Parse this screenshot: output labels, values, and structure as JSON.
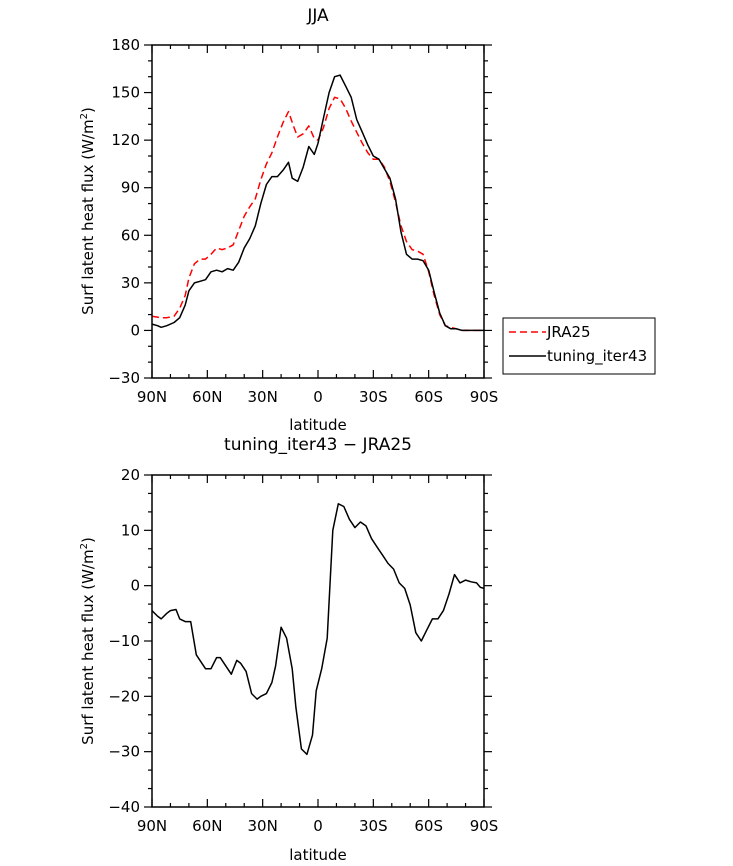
{
  "chart_data": [
    {
      "type": "line",
      "title": "JJA",
      "xlabel": "latitude",
      "ylabel": "Surf latent heat flux (W/m²)",
      "ylabel_unit_base": "W/m",
      "ylabel_prefix": "Surf latent heat flux (",
      "ylabel_sup": "2",
      "ylabel_suffix": ")",
      "xlim": [
        90,
        -90
      ],
      "ylim": [
        -30,
        180
      ],
      "xticks": [
        90,
        60,
        30,
        0,
        -30,
        -60,
        -90
      ],
      "xtick_labels": [
        "90N",
        "60N",
        "30N",
        "0",
        "30S",
        "60S",
        "90S"
      ],
      "yticks": [
        -30,
        0,
        30,
        60,
        90,
        120,
        150,
        180
      ],
      "ytick_labels": [
        "−30",
        "0",
        "30",
        "60",
        "90",
        "120",
        "150",
        "180"
      ],
      "legend_position": "right",
      "series": [
        {
          "name": "JRA25",
          "color": "#ff0000",
          "dash": "dashed",
          "x": [
            90,
            85,
            82,
            78,
            75,
            72,
            70,
            67,
            64,
            61,
            58,
            55,
            52,
            49,
            46,
            43,
            40,
            37,
            34,
            31,
            28,
            25,
            22,
            19,
            16,
            13,
            11,
            8,
            5,
            2,
            0,
            -3,
            -6,
            -9,
            -12,
            -15,
            -18,
            -21,
            -24,
            -27,
            -30,
            -33,
            -36,
            -39,
            -42,
            -45,
            -48,
            -51,
            -54,
            -57,
            -60,
            -63,
            -66,
            -69,
            -72,
            -75,
            -78,
            -81,
            -84,
            -87,
            -90
          ],
          "y": [
            9,
            8,
            8,
            9,
            14,
            22,
            33,
            42,
            45,
            45,
            48,
            52,
            51,
            52,
            54,
            63,
            72,
            78,
            83,
            95,
            105,
            112,
            122,
            131,
            138,
            128,
            122,
            124,
            129,
            121,
            120,
            128,
            140,
            147,
            146,
            140,
            132,
            125,
            118,
            112,
            108,
            108,
            103,
            94,
            81,
            66,
            56,
            51,
            50,
            48,
            37,
            22,
            10,
            3,
            2,
            1,
            0,
            0,
            0,
            0,
            0
          ]
        },
        {
          "name": "tuning_iter43",
          "color": "#000000",
          "dash": "solid",
          "x": [
            90,
            87,
            85,
            82,
            78,
            75,
            72,
            70,
            67,
            64,
            61,
            58,
            55,
            52,
            49,
            46,
            43,
            40,
            37,
            34,
            31,
            28,
            25,
            22,
            19,
            16,
            14,
            11,
            8,
            5,
            2,
            0,
            -3,
            -6,
            -9,
            -12,
            -15,
            -18,
            -21,
            -24,
            -27,
            -30,
            -33,
            -36,
            -39,
            -42,
            -45,
            -48,
            -51,
            -54,
            -57,
            -60,
            -63,
            -66,
            -69,
            -72,
            -75,
            -78,
            -81,
            -84,
            -87,
            -90
          ],
          "y": [
            4,
            3,
            2,
            3,
            5,
            8,
            16,
            25,
            30,
            31,
            32,
            37,
            38,
            37,
            39,
            38,
            43,
            52,
            58,
            66,
            80,
            92,
            97,
            97,
            101,
            106,
            96,
            94,
            103,
            116,
            111,
            118,
            134,
            150,
            160,
            161,
            154,
            147,
            133,
            125,
            117,
            110,
            108,
            102,
            96,
            83,
            62,
            48,
            45,
            45,
            44,
            38,
            24,
            11,
            3,
            1,
            1,
            0,
            0,
            0,
            0,
            0
          ]
        }
      ]
    },
    {
      "type": "line",
      "title": "tuning_iter43 − JRA25",
      "xlabel": "latitude",
      "ylabel": "Surf latent heat flux (W/m²)",
      "ylabel_prefix": "Surf latent heat flux (",
      "ylabel_unit_base": "W/m",
      "ylabel_sup": "2",
      "ylabel_suffix": ")",
      "xlim": [
        90,
        -90
      ],
      "ylim": [
        -40,
        20
      ],
      "xticks": [
        90,
        60,
        30,
        0,
        -30,
        -60,
        -90
      ],
      "xtick_labels": [
        "90N",
        "60N",
        "30N",
        "0",
        "30S",
        "60S",
        "90S"
      ],
      "yticks": [
        -40,
        -30,
        -20,
        -10,
        0,
        10,
        20
      ],
      "ytick_labels": [
        "−40",
        "−30",
        "−20",
        "−10",
        "0",
        "10",
        "20"
      ],
      "series": [
        {
          "name": "",
          "color": "#000000",
          "dash": "solid",
          "x": [
            90,
            87,
            85,
            82,
            80,
            77,
            75,
            72,
            69,
            66,
            64,
            61,
            58,
            55,
            53,
            50,
            47,
            44,
            42,
            39,
            36,
            33,
            31,
            28,
            25,
            23,
            20,
            17,
            14,
            12,
            9,
            6,
            3,
            1,
            -2,
            -5,
            -8,
            -11,
            -14,
            -17,
            -20,
            -23,
            -26,
            -29,
            -32,
            -35,
            -38,
            -41,
            -44,
            -47,
            -50,
            -53,
            -56,
            -59,
            -62,
            -65,
            -68,
            -71,
            -74,
            -77,
            -80,
            -83,
            -86,
            -88,
            -90
          ],
          "y": [
            -4.5,
            -5.5,
            -6,
            -5,
            -4.5,
            -4.3,
            -6,
            -6.5,
            -6.5,
            -12.5,
            -13.5,
            -15,
            -15,
            -13,
            -13,
            -14.5,
            -16,
            -13.5,
            -14,
            -15.5,
            -19.5,
            -20.5,
            -20,
            -19.5,
            -17.5,
            -14.5,
            -7.5,
            -9.5,
            -15,
            -22,
            -29.5,
            -30.5,
            -27,
            -19,
            -15,
            -9.5,
            10,
            14.8,
            14.3,
            12,
            10.5,
            11.5,
            10.8,
            8.5,
            7,
            5.5,
            4,
            3,
            0.5,
            -0.5,
            -3.5,
            -8.5,
            -10,
            -8,
            -6,
            -6,
            -4.5,
            -1.5,
            2,
            0.5,
            1,
            0.7,
            0.5,
            -0.3,
            -0.5
          ]
        }
      ]
    }
  ]
}
